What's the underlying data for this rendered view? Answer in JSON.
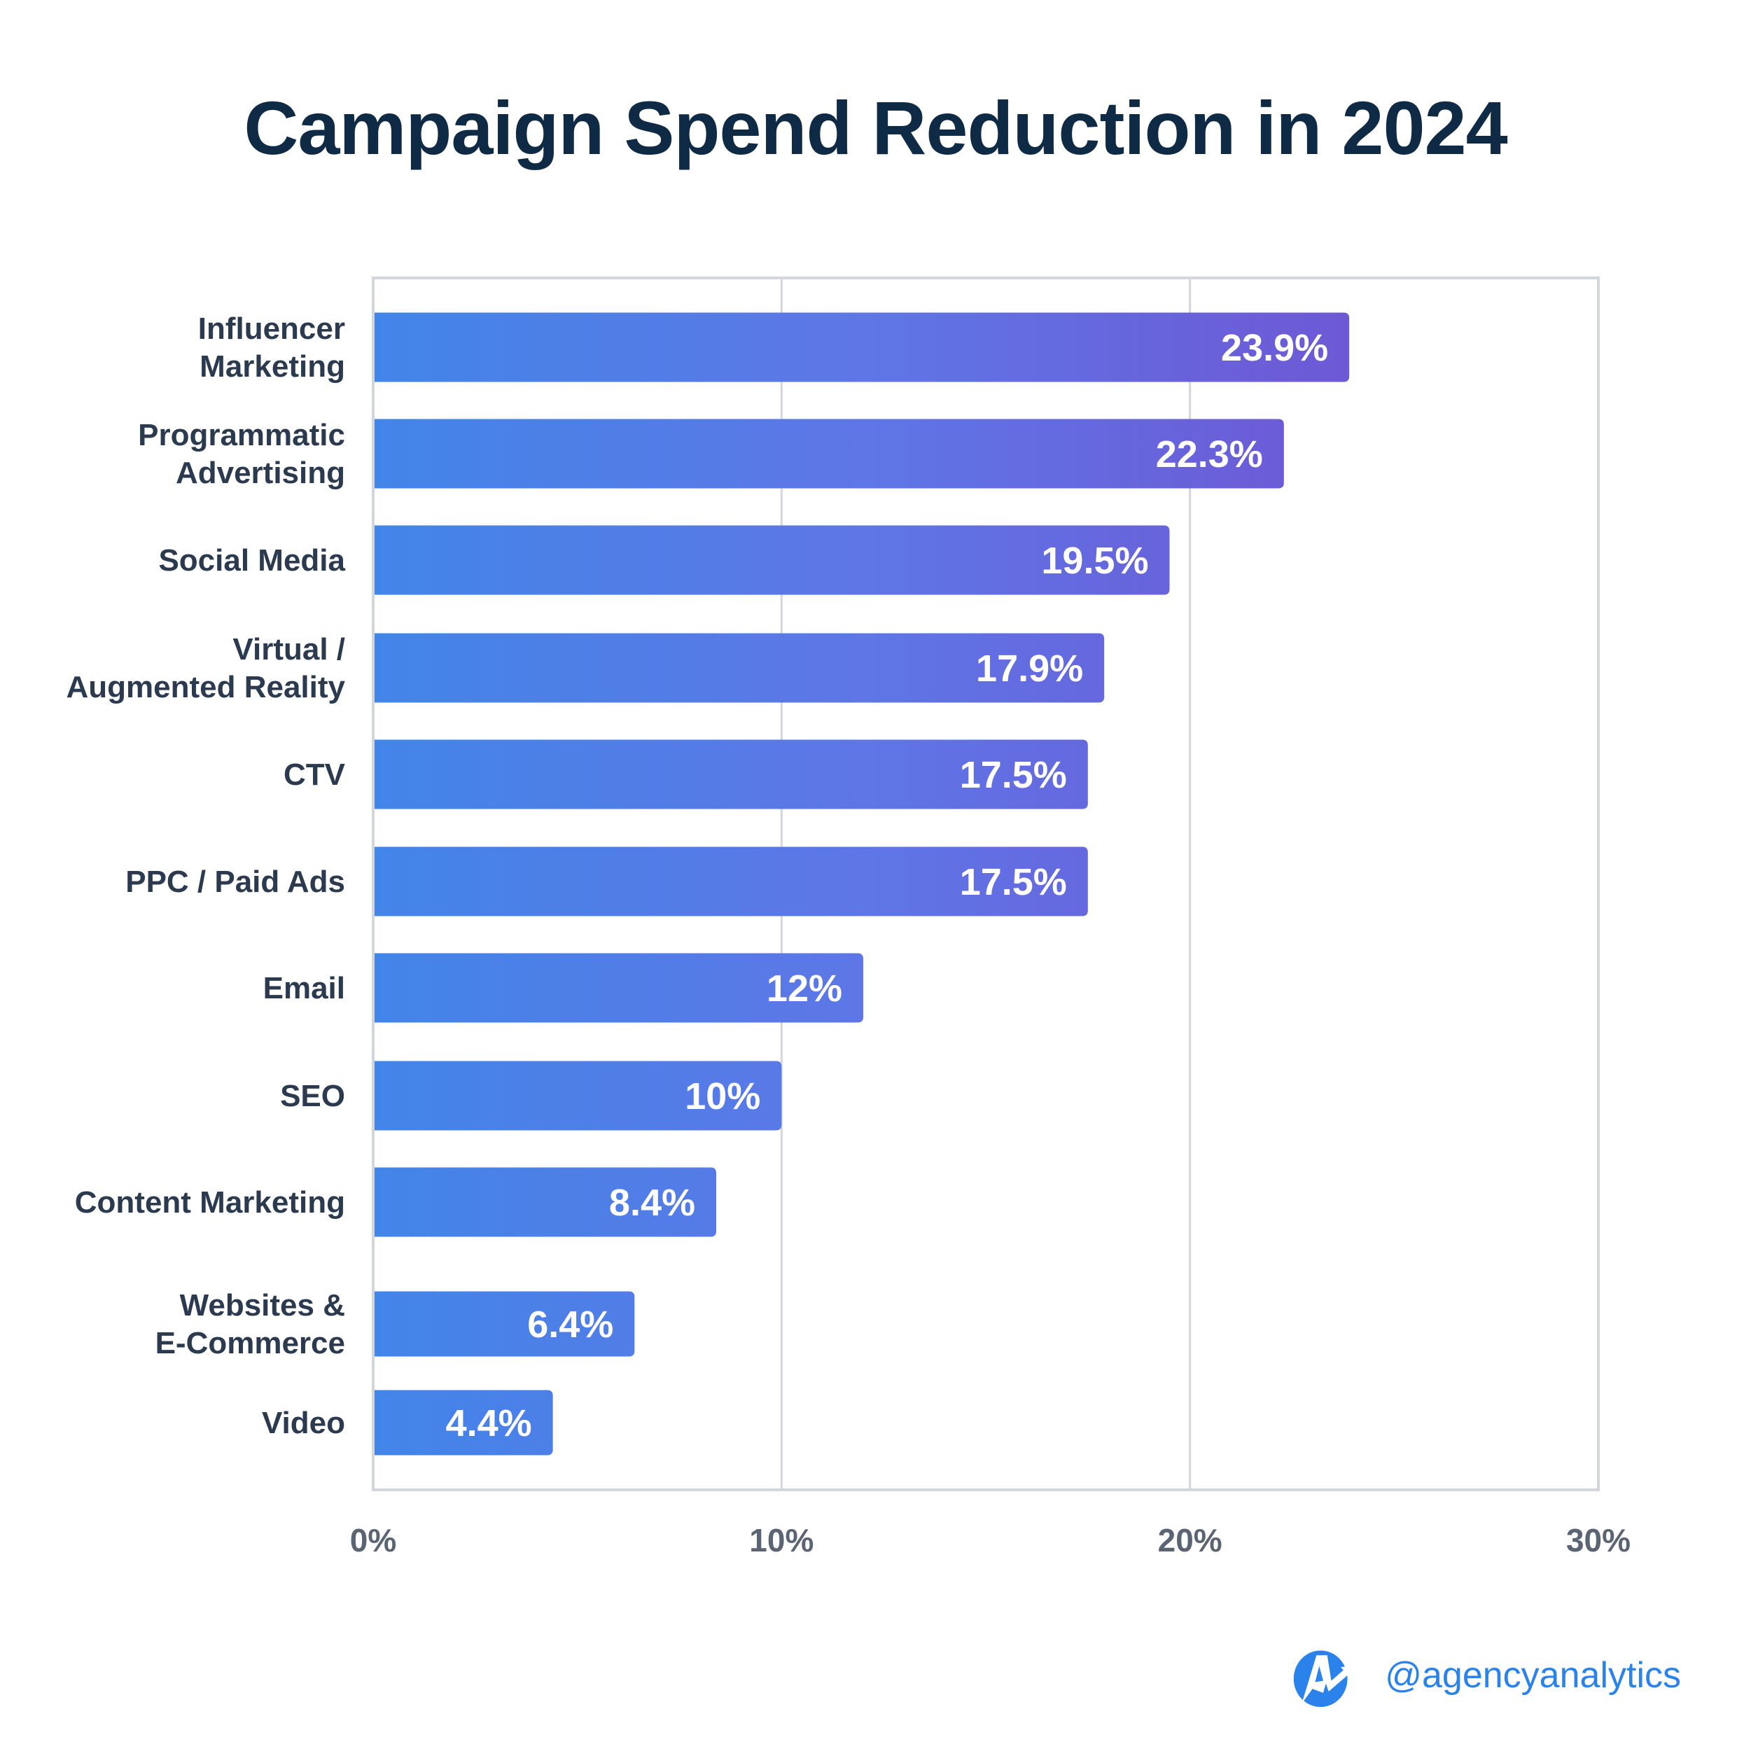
{
  "chart_data": {
    "type": "bar",
    "orientation": "horizontal",
    "title": "Campaign Spend Reduction in 2024",
    "xlabel": "",
    "ylabel": "",
    "xlim": [
      0,
      30
    ],
    "x_ticks": [
      0,
      10,
      20,
      30
    ],
    "x_tick_labels": [
      "0%",
      "10%",
      "20%",
      "30%"
    ],
    "grid": "vertical",
    "categories": [
      [
        "Influencer",
        "Marketing"
      ],
      [
        "Programmatic",
        "Advertising"
      ],
      [
        "Social Media"
      ],
      [
        "Virtual /",
        "Augmented Reality"
      ],
      [
        "CTV"
      ],
      [
        "PPC / Paid Ads"
      ],
      [
        "Email"
      ],
      [
        "SEO"
      ],
      [
        "Content Marketing"
      ],
      [
        "Websites &",
        "E-Commerce"
      ],
      [
        "Video"
      ]
    ],
    "values": [
      23.9,
      22.3,
      19.5,
      17.9,
      17.5,
      17.5,
      12,
      10,
      8.4,
      6.4,
      4.4
    ],
    "value_labels": [
      "23.9%",
      "22.3%",
      "19.5%",
      "17.9%",
      "17.5%",
      "17.5%",
      "12%",
      "10%",
      "8.4%",
      "6.4%",
      "4.4%"
    ],
    "colors": {
      "bar_start": "#4285e8",
      "bar_end": "#6e58d4",
      "grid": "#d3d6dc",
      "label": "#2b3a4e",
      "tick": "#5a6472"
    }
  },
  "branding": {
    "handle": "@agencyanalytics",
    "logo_icon": "agencyanalytics-logo-icon",
    "color": "#2a82ea"
  }
}
